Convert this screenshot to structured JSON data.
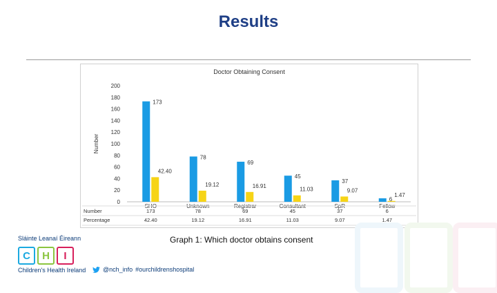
{
  "slide": {
    "title": "Results",
    "caption": "Graph 1: Which doctor obtains consent"
  },
  "logo": {
    "line1": "Sláinte Leanaí Éireann",
    "letters": [
      "C",
      "H",
      "I"
    ],
    "line2": "Children's Health Ireland",
    "colors": [
      "#1aa9e0",
      "#8bc53f",
      "#d71f5b"
    ]
  },
  "social": {
    "handle": "@nch_info",
    "hashtag": "#ourchildrenshospital",
    "icon": "twitter-icon"
  },
  "chart_data": {
    "type": "bar",
    "title": "Doctor Obtaining Consent",
    "ylabel": "Number",
    "xlabel": "",
    "ylim": [
      0,
      200
    ],
    "yticks": [
      0,
      20,
      40,
      60,
      80,
      100,
      120,
      140,
      160,
      180,
      200
    ],
    "categories": [
      "SHO",
      "Unknown",
      "Registrar",
      "Consultant",
      "SpR",
      "Fellow"
    ],
    "series": [
      {
        "name": "Number",
        "values": [
          173,
          78,
          69,
          45,
          37,
          6
        ],
        "labels": [
          "173",
          "78",
          "69",
          "45",
          "37",
          "6"
        ],
        "color": "#1a9be4"
      },
      {
        "name": "Percentage",
        "values": [
          42.4,
          19.12,
          16.91,
          11.03,
          9.07,
          1.47
        ],
        "labels": [
          "42.40",
          "19.12",
          "16.91",
          "11.03",
          "9.07",
          "1.47"
        ],
        "color": "#f6d416"
      }
    ],
    "grid": false,
    "legend": "data table below axis"
  }
}
